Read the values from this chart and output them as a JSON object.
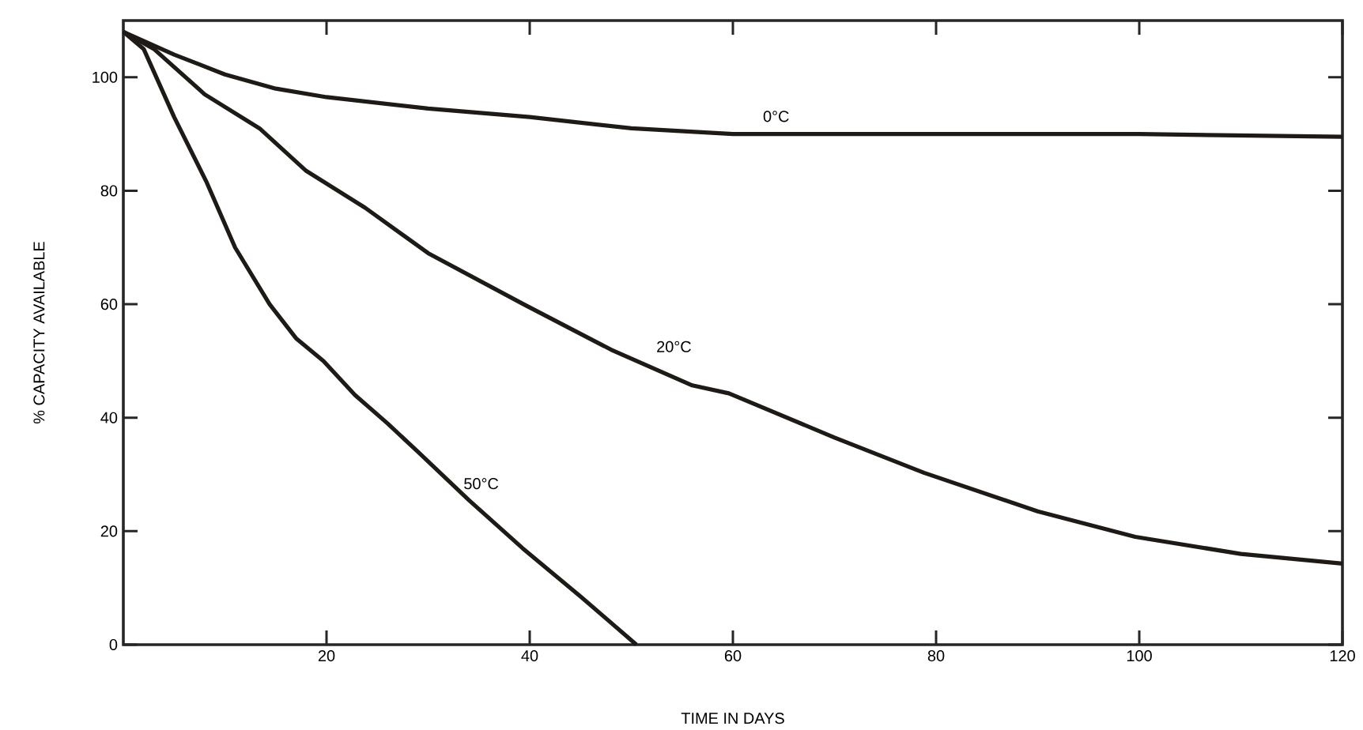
{
  "chart_data": {
    "type": "line",
    "xlabel": "TIME IN DAYS",
    "ylabel": "% CAPACITY AVAILABLE",
    "xlim": [
      0,
      120
    ],
    "ylim": [
      0,
      110
    ],
    "xticks": [
      20,
      40,
      60,
      80,
      100,
      120
    ],
    "yticks": [
      0,
      20,
      40,
      60,
      80,
      100
    ],
    "grid": false,
    "legend": false,
    "marker": "none",
    "line_style": "solid",
    "series": [
      {
        "name": "0°C",
        "color": "#1e1a16",
        "x": [
          0,
          5,
          10,
          15,
          20,
          30,
          40,
          50,
          60,
          80,
          100,
          120
        ],
        "values": [
          108,
          104,
          100.5,
          98,
          96.5,
          94.5,
          93,
          91,
          90,
          90,
          90,
          89.5
        ]
      },
      {
        "name": "20°C",
        "color": "#1e1a16",
        "x": [
          0,
          3,
          8,
          13.4,
          18,
          23.8,
          30,
          39.4,
          48,
          56,
          59.6,
          70,
          78.8,
          90,
          99.6,
          110,
          120
        ],
        "values": [
          108,
          105,
          97,
          91,
          83.5,
          77,
          69,
          60,
          52,
          45.7,
          44.3,
          36.5,
          30.3,
          23.5,
          19,
          16,
          14.3
        ]
      },
      {
        "name": "50°C",
        "color": "#1e1a16",
        "x": [
          0,
          2,
          5,
          8.2,
          11,
          14.4,
          17,
          19.7,
          22.8,
          26,
          29,
          34,
          39.3,
          45,
          50.5
        ],
        "values": [
          108,
          105,
          93,
          81.5,
          70,
          60,
          54,
          50,
          44,
          39,
          34,
          25.5,
          17,
          8.5,
          0
        ]
      }
    ]
  }
}
